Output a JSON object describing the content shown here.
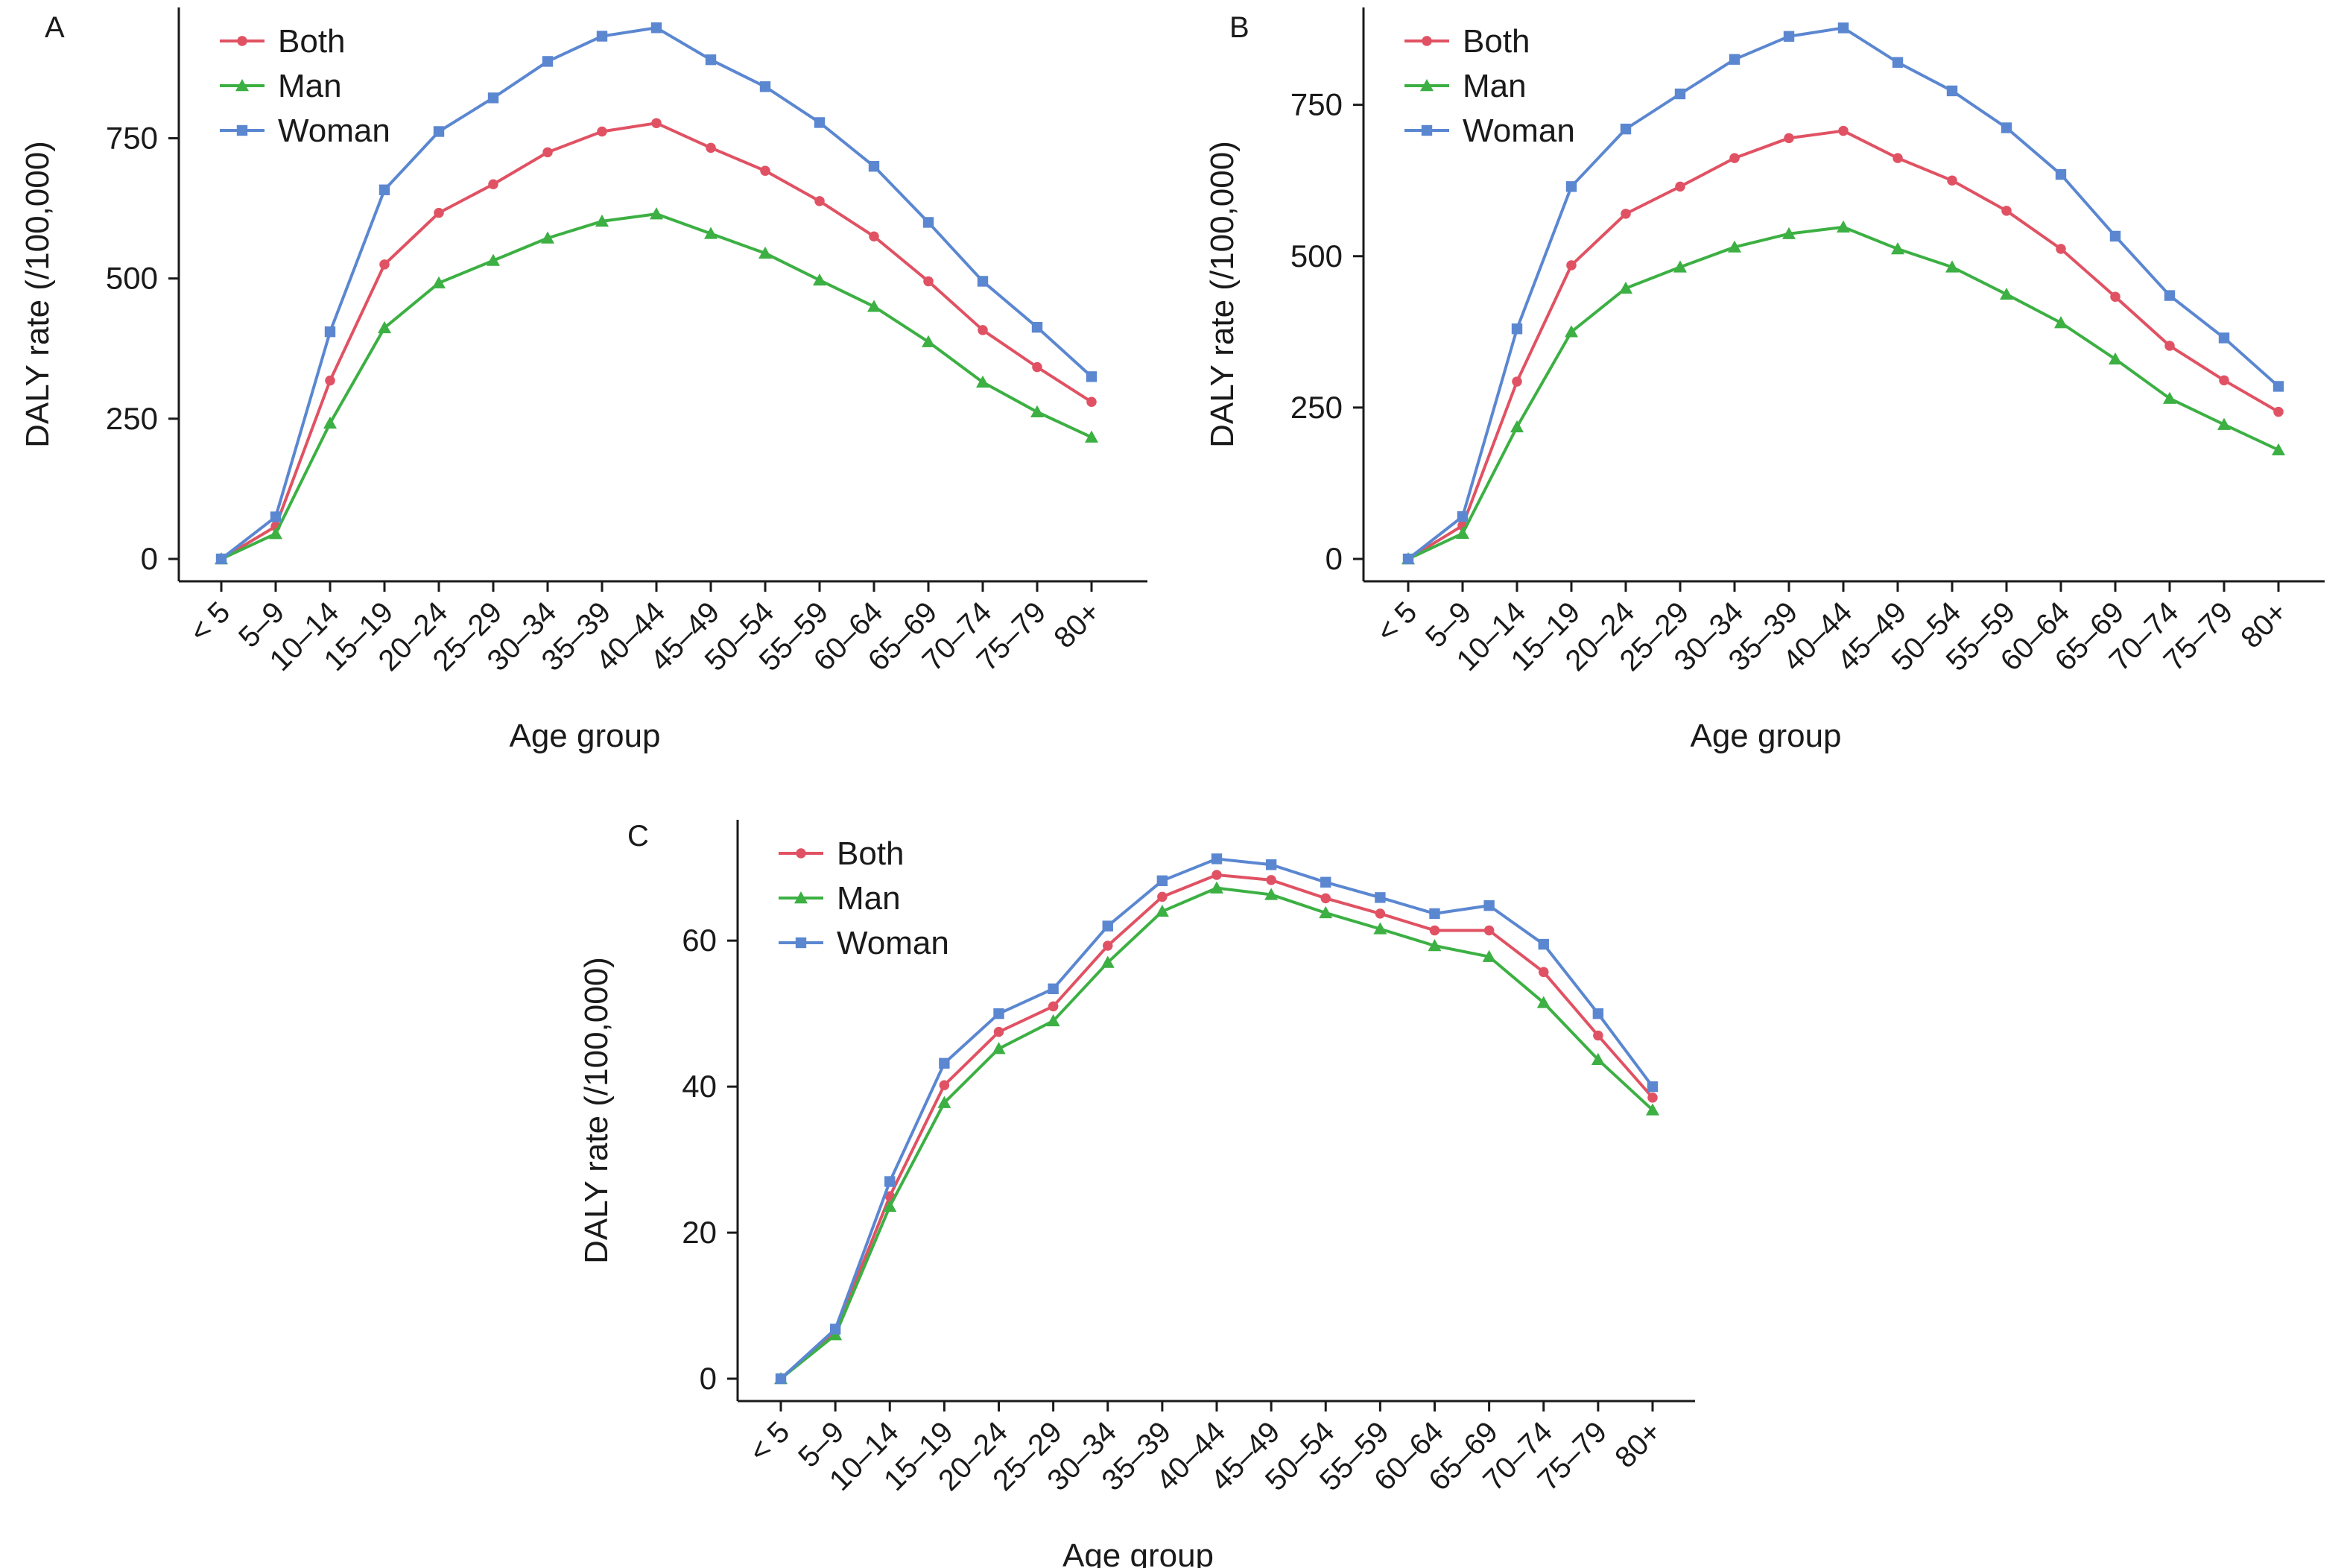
{
  "colors": {
    "Both": "#e05263",
    "Man": "#3cb043",
    "Woman": "#5b87d1",
    "axis": "#1a1a1a"
  },
  "legend_markers": {
    "Both": "circle",
    "Man": "triangle",
    "Woman": "square"
  },
  "chart_data": [
    {
      "type": "line",
      "panel_label": "A",
      "title": "",
      "xlabel": "Age group",
      "ylabel": "DALY rate (/100,000)",
      "categories": [
        "< 5",
        "5–9",
        "10–14",
        "15–19",
        "20–24",
        "25–29",
        "30–34",
        "35–39",
        "40–44",
        "45–49",
        "50–54",
        "55–59",
        "60–64",
        "65–69",
        "70–74",
        "75–79",
        "80+"
      ],
      "ylim": [
        0,
        950
      ],
      "yticks": [
        0,
        250,
        500,
        750
      ],
      "grid": false,
      "legend": "top-left",
      "series": [
        {
          "name": "Both",
          "values": [
            0,
            58,
            318,
            525,
            617,
            668,
            725,
            762,
            777,
            733,
            692,
            638,
            575,
            495,
            408,
            342,
            280
          ]
        },
        {
          "name": "Man",
          "values": [
            0,
            45,
            242,
            412,
            492,
            532,
            572,
            602,
            615,
            580,
            545,
            497,
            450,
            387,
            315,
            262,
            217
          ]
        },
        {
          "name": "Woman",
          "values": [
            0,
            75,
            405,
            658,
            762,
            822,
            887,
            932,
            947,
            890,
            842,
            778,
            700,
            600,
            495,
            413,
            325
          ]
        }
      ]
    },
    {
      "type": "line",
      "panel_label": "B",
      "title": "",
      "xlabel": "Age group",
      "ylabel": "DALY rate (/100,000)",
      "categories": [
        "< 5",
        "5–9",
        "10–14",
        "15–19",
        "20–24",
        "25–29",
        "30–34",
        "35–39",
        "40–44",
        "45–49",
        "50–54",
        "55–59",
        "60–64",
        "65–69",
        "70–74",
        "75–79",
        "80+"
      ],
      "ylim": [
        0,
        880
      ],
      "yticks": [
        0,
        250,
        500,
        750
      ],
      "grid": false,
      "legend": "top-left",
      "series": [
        {
          "name": "Both",
          "values": [
            0,
            55,
            293,
            485,
            570,
            615,
            662,
            695,
            707,
            662,
            625,
            575,
            512,
            433,
            352,
            295,
            243
          ]
        },
        {
          "name": "Man",
          "values": [
            0,
            42,
            218,
            375,
            447,
            482,
            515,
            537,
            548,
            512,
            482,
            437,
            390,
            330,
            265,
            222,
            180
          ]
        },
        {
          "name": "Woman",
          "values": [
            0,
            70,
            380,
            615,
            710,
            768,
            825,
            863,
            877,
            820,
            773,
            712,
            635,
            533,
            435,
            365,
            285
          ]
        }
      ]
    },
    {
      "type": "line",
      "panel_label": "C",
      "title": "",
      "xlabel": "Age group",
      "ylabel": "DALY rate (/100,000)",
      "categories": [
        "< 5",
        "5–9",
        "10–14",
        "15–19",
        "20–24",
        "25–29",
        "30–34",
        "35–39",
        "40–44",
        "45–49",
        "50–54",
        "55–59",
        "60–64",
        "65–69",
        "70–74",
        "75–79",
        "80+"
      ],
      "ylim": [
        0,
        74
      ],
      "yticks": [
        0,
        20,
        40,
        60
      ],
      "grid": false,
      "legend": "top-left",
      "series": [
        {
          "name": "Both",
          "values": [
            0,
            6.4,
            25.0,
            40.2,
            47.5,
            51.0,
            59.3,
            66.0,
            69.0,
            68.3,
            65.8,
            63.7,
            61.4,
            61.4,
            55.7,
            47.0,
            38.5
          ]
        },
        {
          "name": "Man",
          "values": [
            0,
            6.0,
            23.6,
            37.8,
            45.2,
            49.0,
            57.0,
            64.0,
            67.2,
            66.3,
            63.8,
            61.6,
            59.3,
            57.8,
            51.5,
            43.7,
            36.8
          ]
        },
        {
          "name": "Woman",
          "values": [
            0,
            6.8,
            27.0,
            43.2,
            50.0,
            53.4,
            62.0,
            68.2,
            71.2,
            70.4,
            68.0,
            65.9,
            63.7,
            64.8,
            59.5,
            50.0,
            40.0
          ]
        }
      ]
    }
  ]
}
